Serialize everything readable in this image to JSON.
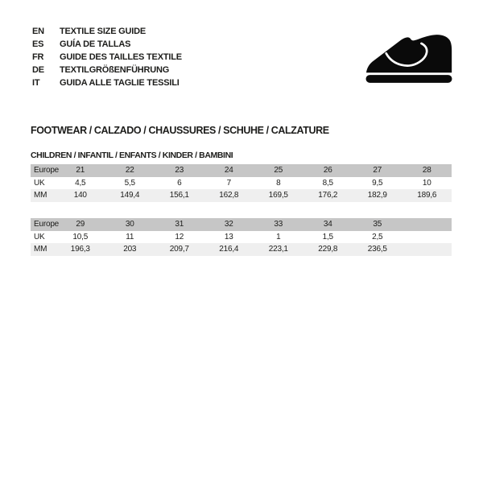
{
  "languages": [
    {
      "code": "EN",
      "label": "TEXTILE SIZE GUIDE"
    },
    {
      "code": "ES",
      "label": "GUÍA DE TALLAS"
    },
    {
      "code": "FR",
      "label": "GUIDE DES TAILLES TEXTILE"
    },
    {
      "code": "DE",
      "label": "TEXTILGRÖßENFÜHRUNG"
    },
    {
      "code": "IT",
      "label": "GUIDA ALLE TAGLIE TESSILI"
    }
  ],
  "icons": {
    "shoe": "children-shoe-icon"
  },
  "section_title": "FOOTWEAR / CALZADO / CHAUSSURES / SCHUHE / CALZATURE",
  "category_title": "CHILDREN / INFANTIL / ENFANTS / KINDER / BAMBINI",
  "colors": {
    "header_row": "#c6c6c6",
    "alt_row": "#efefef",
    "text": "#1d1d1b",
    "icon": "#0a0a0a",
    "background": "#ffffff"
  },
  "tables": [
    {
      "row_labels": [
        "Europe",
        "UK",
        "MM"
      ],
      "rows": [
        [
          "21",
          "22",
          "23",
          "24",
          "25",
          "26",
          "27",
          "28"
        ],
        [
          "4,5",
          "5,5",
          "6",
          "7",
          "8",
          "8,5",
          "9,5",
          "10"
        ],
        [
          "140",
          "149,4",
          "156,1",
          "162,8",
          "169,5",
          "176,2",
          "182,9",
          "189,6"
        ]
      ]
    },
    {
      "row_labels": [
        "Europe",
        "UK",
        "MM"
      ],
      "rows": [
        [
          "29",
          "30",
          "31",
          "32",
          "33",
          "34",
          "35",
          ""
        ],
        [
          "10,5",
          "11",
          "12",
          "13",
          "1",
          "1,5",
          "2,5",
          ""
        ],
        [
          "196,3",
          "203",
          "209,7",
          "216,4",
          "223,1",
          "229,8",
          "236,5",
          ""
        ]
      ]
    }
  ]
}
